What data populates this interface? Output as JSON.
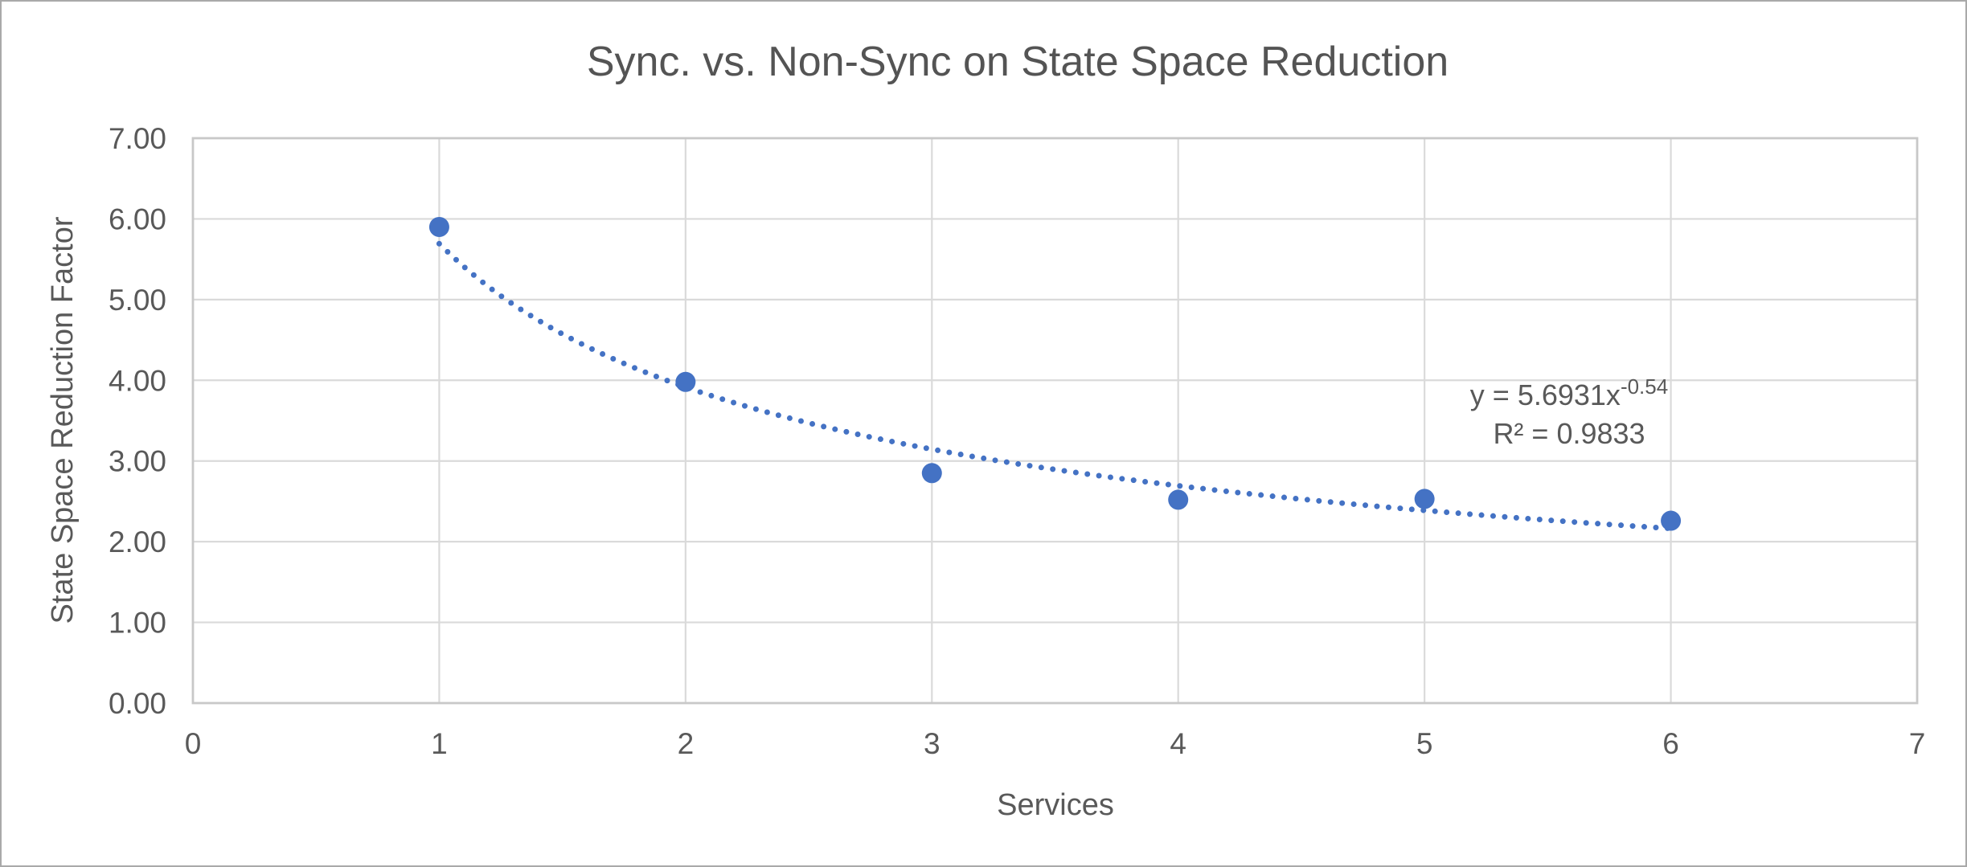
{
  "chart_data": {
    "type": "scatter",
    "title": "Sync. vs. Non-Sync on State Space Reduction",
    "xlabel": "Services",
    "ylabel": "State Space Reduction Factor",
    "xlim": [
      0,
      7
    ],
    "ylim": [
      0,
      7
    ],
    "x_ticks": [
      "0",
      "1",
      "2",
      "3",
      "4",
      "5",
      "6",
      "7"
    ],
    "y_ticks": [
      "0.00",
      "1.00",
      "2.00",
      "3.00",
      "4.00",
      "5.00",
      "6.00",
      "7.00"
    ],
    "grid": "both-major",
    "legend": "none",
    "points": [
      {
        "x": 1,
        "y": 5.9
      },
      {
        "x": 2,
        "y": 3.98
      },
      {
        "x": 3,
        "y": 2.85
      },
      {
        "x": 4,
        "y": 2.52
      },
      {
        "x": 5,
        "y": 2.53
      },
      {
        "x": 6,
        "y": 2.26
      }
    ],
    "trendline": {
      "type": "power",
      "a": 5.6931,
      "b": -0.54,
      "x_start": 1,
      "x_end": 6,
      "style": "dotted",
      "equation_base": "y = 5.6931x",
      "equation_exponent": "-0.54",
      "r_squared_label": "R² = 0.9833"
    },
    "colors": {
      "series_accent": "#4472C4",
      "gridline": "#DADADA",
      "axis_frame": "#C8C8C8",
      "text": "#595959"
    }
  }
}
